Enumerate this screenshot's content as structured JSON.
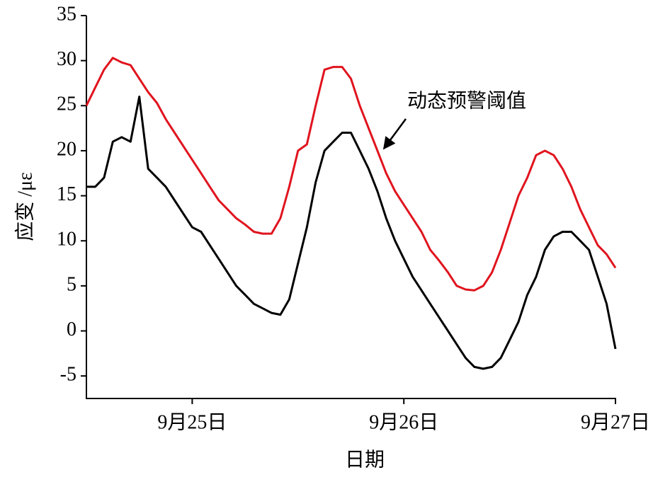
{
  "chart_data": {
    "type": "line",
    "x_label": "日期",
    "y_label": "应变 /με",
    "annotation": "动态预警阈值",
    "x": [
      12,
      13,
      14,
      15,
      16,
      17,
      18,
      19,
      20,
      21,
      22,
      23,
      24,
      25,
      26,
      27,
      28,
      29,
      30,
      31,
      32,
      33,
      34,
      35,
      36,
      37,
      38,
      39,
      40,
      41,
      42,
      43,
      44,
      45,
      46,
      47,
      48,
      49,
      50,
      51,
      52,
      53,
      54,
      55,
      56,
      57,
      58,
      59,
      60,
      61,
      62,
      63,
      64,
      65,
      66,
      67,
      68,
      69,
      70,
      71,
      72
    ],
    "series": [
      {
        "name": "动态预警阈值",
        "color": "#e0141e",
        "values": [
          25,
          27,
          29,
          30.3,
          29.8,
          29.5,
          28,
          26.5,
          25.3,
          23.5,
          22,
          20.5,
          19,
          17.5,
          16,
          14.5,
          13.5,
          12.5,
          11.8,
          11,
          10.8,
          10.8,
          12.5,
          16,
          20,
          20.7,
          25,
          29,
          29.3,
          29.3,
          28,
          25,
          22.5,
          20,
          17.5,
          15.5,
          14,
          12.5,
          11,
          9,
          7.8,
          6.5,
          5,
          4.6,
          4.5,
          5,
          6.5,
          9,
          12,
          15,
          17,
          19.5,
          20,
          19.5,
          18,
          16,
          13.5,
          11.5,
          9.5,
          8.5,
          7
        ]
      },
      {
        "color": "#000000",
        "values": [
          16,
          16,
          17,
          21,
          21.5,
          21,
          26,
          18,
          17,
          16,
          14.5,
          13,
          11.5,
          11,
          9.5,
          8,
          6.5,
          5,
          4,
          3,
          2.5,
          2,
          1.8,
          3.5,
          7.5,
          11.5,
          16.5,
          20,
          21,
          22,
          22,
          20,
          18,
          15.5,
          12.5,
          10,
          8,
          6,
          4.5,
          3,
          1.5,
          0,
          -1.5,
          -3,
          -4,
          -4.2,
          -4,
          -3,
          -1,
          1,
          4,
          6,
          9,
          10.5,
          11,
          11,
          10,
          9,
          6,
          3,
          -2
        ]
      }
    ],
    "xlim": [
      12,
      72
    ],
    "xticks": [
      {
        "value": 24,
        "label": "9月25日"
      },
      {
        "value": 48,
        "label": "9月26日"
      },
      {
        "value": 72,
        "label": "9月27日"
      }
    ],
    "ylim": [
      -7.5,
      35
    ],
    "yticks": [
      -5,
      0,
      5,
      10,
      15,
      20,
      25,
      30,
      35
    ]
  }
}
